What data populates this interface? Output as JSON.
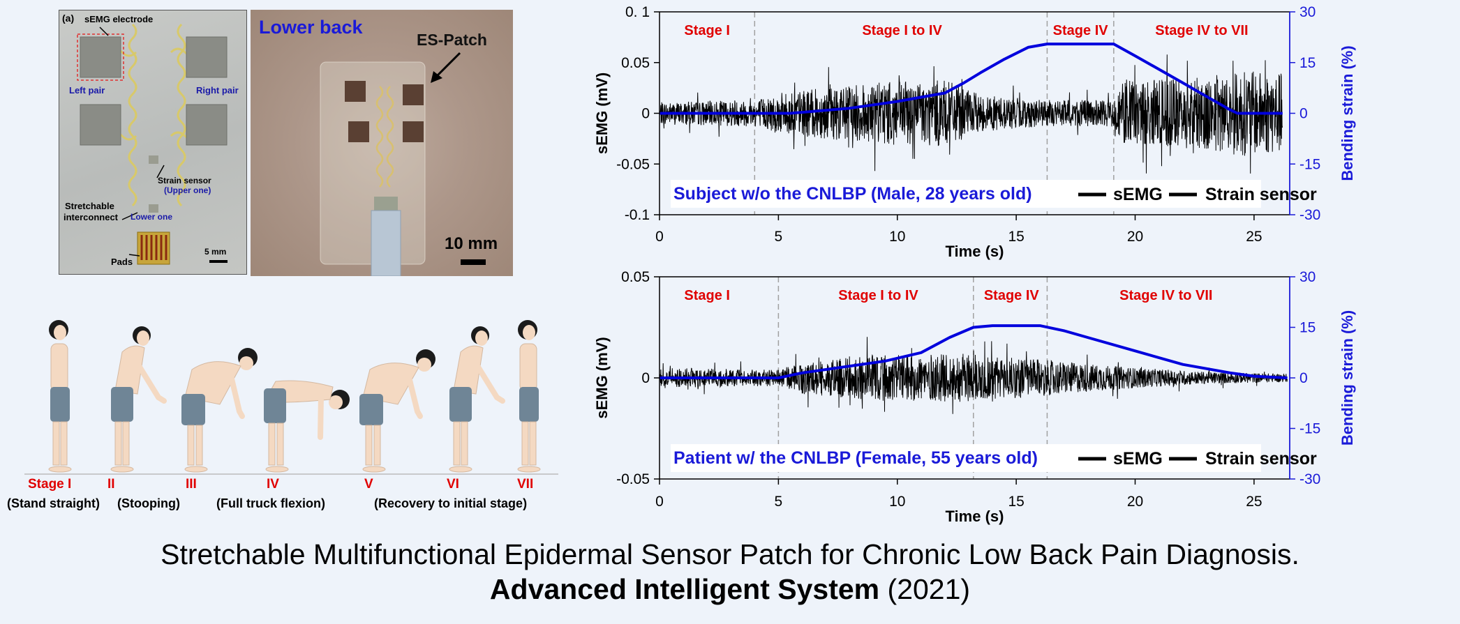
{
  "panel_label": "(a)",
  "photo_a": {
    "semg_electrode": "sEMG electrode",
    "left_pair": "Left pair",
    "right_pair": "Right pair",
    "strain_sensor": "Strain sensor",
    "upper_one": "(Upper one)",
    "stretchable": "Stretchable",
    "interconnect": "interconnect",
    "lower_one": "Lower one",
    "pads": "Pads",
    "scale": "5 mm"
  },
  "photo_b": {
    "title": "Lower back",
    "patch": "ES-Patch",
    "scale": "10 mm"
  },
  "postures": {
    "stages": [
      "Stage I",
      "II",
      "III",
      "IV",
      "V",
      "VI",
      "VII"
    ],
    "descs": [
      "(Stand straight)",
      "(Stooping)",
      "(Full truck flexion)",
      "(Recovery to initial stage)"
    ]
  },
  "caption": {
    "line1": "Stretchable Multifunctional Epidermal Sensor Patch for Chronic Low Back Pain Diagnosis.",
    "journal": "Advanced Intelligent System",
    "year": "(2021)"
  },
  "chart_data": [
    {
      "type": "line",
      "xlabel": "Time  (s)",
      "ylabel": "sEMG  (mV)",
      "y2label": "Bending strain  (%)",
      "xlim": [
        0,
        26.5
      ],
      "ylim": [
        -0.1,
        0.1
      ],
      "y2lim": [
        -30,
        30
      ],
      "xticks": [
        0,
        5,
        10,
        15,
        20,
        25
      ],
      "yticks": [
        -0.1,
        -0.05,
        0,
        0.05,
        0.1
      ],
      "ytick_labels": [
        "-0.1",
        "-0.05",
        "0",
        "0.05",
        "0. 1"
      ],
      "y2ticks": [
        -30,
        -15,
        0,
        15,
        30
      ],
      "stage_lines": [
        4.0,
        16.3,
        19.1
      ],
      "stages": [
        {
          "label": "Stage I",
          "x": 2.0
        },
        {
          "label": "Stage I to IV",
          "x": 10.2
        },
        {
          "label": "Stage IV",
          "x": 17.7
        },
        {
          "label": "Stage IV to VII",
          "x": 22.8
        }
      ],
      "legend_title": "Subject w/o the CNLBP (Male, 28 years old)",
      "legend_items": [
        "sEMG",
        "Strain sensor"
      ],
      "series": [
        {
          "name": "sEMG",
          "color": "#000000",
          "envelope": {
            "x": [
              0,
              4,
              5,
              9,
              12,
              13.5,
              16.3,
              19.1,
              19.5,
              23,
              24.5,
              26.2
            ],
            "amp": [
              0.011,
              0.013,
              0.02,
              0.03,
              0.033,
              0.018,
              0.013,
              0.013,
              0.032,
              0.036,
              0.042,
              0.04
            ]
          }
        },
        {
          "name": "Strain sensor",
          "color": "#0000dd",
          "x": [
            0,
            4,
            5.5,
            8,
            10,
            12,
            12.8,
            13.5,
            14.5,
            15.5,
            16.3,
            17.5,
            19.1,
            20,
            21,
            22,
            23,
            24,
            24.3,
            26.2
          ],
          "y": [
            0,
            0,
            0,
            1.5,
            3.5,
            6,
            9,
            12,
            16,
            19.5,
            20.5,
            20.5,
            20.5,
            17,
            13,
            9,
            5,
            1,
            0,
            0
          ]
        }
      ]
    },
    {
      "type": "line",
      "xlabel": "Time  (s)",
      "ylabel": "sEMG  (mV)",
      "y2label": "Bending strain  (%)",
      "xlim": [
        0,
        26.5
      ],
      "ylim": [
        -0.05,
        0.05
      ],
      "y2lim": [
        -30,
        30
      ],
      "xticks": [
        0,
        5,
        10,
        15,
        20,
        25
      ],
      "yticks": [
        -0.05,
        0,
        0.05
      ],
      "ytick_labels": [
        "-0.05",
        "0",
        "0.05"
      ],
      "y2ticks": [
        -30,
        -15,
        0,
        15,
        30
      ],
      "stage_lines": [
        5.0,
        13.2,
        16.3
      ],
      "stages": [
        {
          "label": "Stage I",
          "x": 2.0
        },
        {
          "label": "Stage I to IV",
          "x": 9.2
        },
        {
          "label": "Stage IV",
          "x": 14.8
        },
        {
          "label": "Stage IV to VII",
          "x": 21.3
        }
      ],
      "legend_title": "Patient w/ the CNLBP (Female, 55 years old)",
      "legend_items": [
        "sEMG",
        "Strain sensor"
      ],
      "series": [
        {
          "name": "sEMG",
          "color": "#000000",
          "envelope": {
            "x": [
              0,
              5,
              6,
              9,
              13,
              15,
              17,
              20,
              23,
              26.4
            ],
            "amp": [
              0.005,
              0.004,
              0.008,
              0.011,
              0.012,
              0.01,
              0.008,
              0.005,
              0.003,
              0.002
            ]
          }
        },
        {
          "name": "Strain sensor",
          "color": "#0000dd",
          "x": [
            0,
            5,
            6,
            8,
            9.5,
            11,
            12.2,
            13.2,
            14,
            16,
            17,
            18,
            20,
            22,
            24,
            25,
            26.4
          ],
          "y": [
            0,
            0,
            1.5,
            3.5,
            5,
            7.5,
            12,
            15,
            15.5,
            15.5,
            14,
            12,
            8,
            4,
            1.5,
            0.5,
            0
          ]
        }
      ]
    }
  ]
}
